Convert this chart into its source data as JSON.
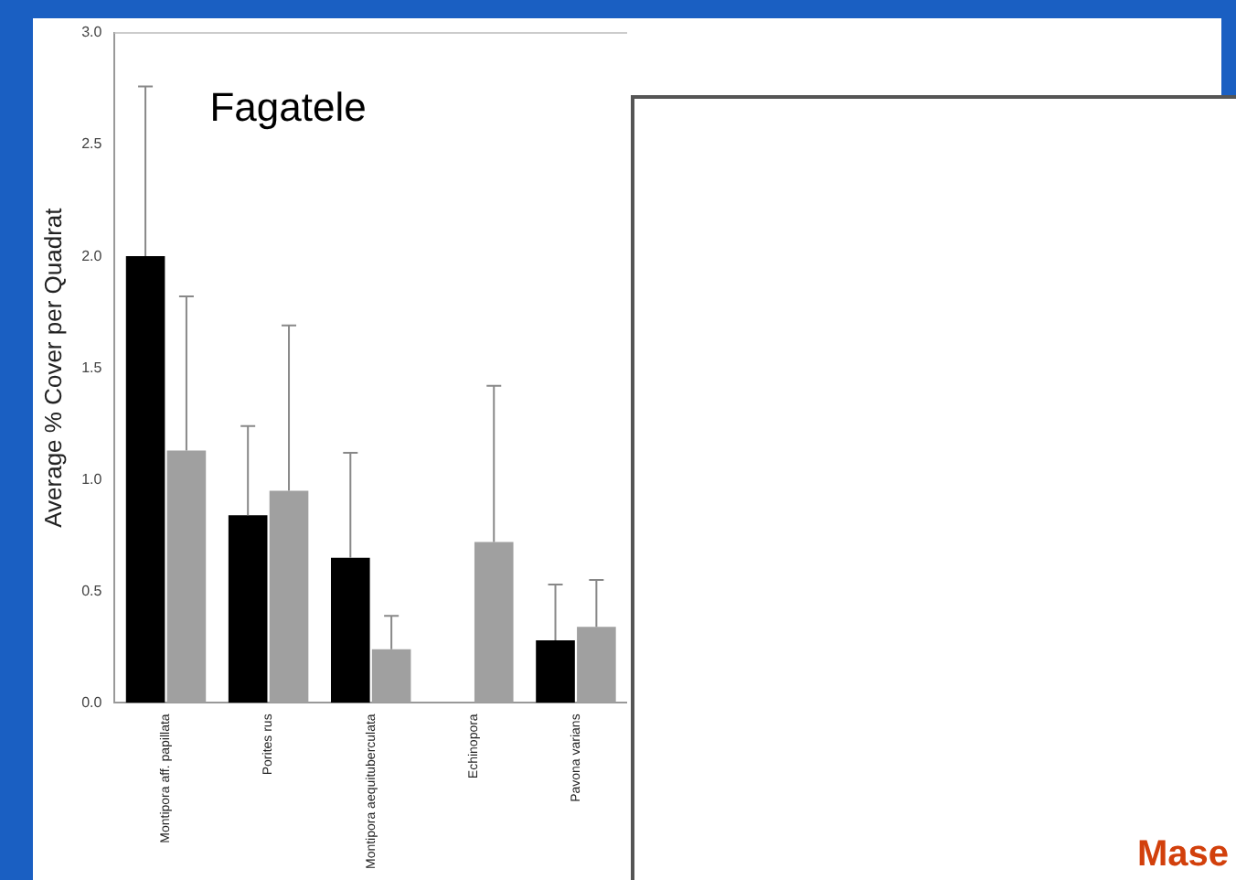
{
  "chart_data": {
    "type": "bar",
    "title": "Fagatele",
    "ylabel": "Average % Cover per Quadrat",
    "categories": [
      "Montipora aff. papillata",
      "Porites rus",
      "Montipora aequituberculata",
      "Echinopora",
      "Pavona varians"
    ],
    "series": [
      {
        "color": "#000000",
        "values": [
          2.0,
          0.84,
          0.65,
          0,
          0.28
        ],
        "errors": [
          [
            2.0,
            2.76
          ],
          [
            0.84,
            1.24
          ],
          [
            0.65,
            1.12
          ],
          null,
          [
            0.28,
            0.53
          ]
        ]
      },
      {
        "color": "#a0a0a0",
        "values": [
          1.13,
          0.95,
          0.24,
          0.72,
          0.34
        ],
        "errors": [
          [
            1.13,
            1.82
          ],
          [
            0.95,
            1.69
          ],
          [
            0.24,
            0.39
          ],
          [
            0.72,
            1.42
          ],
          [
            0.34,
            0.55
          ]
        ]
      }
    ],
    "ylim": [
      0,
      3.0
    ],
    "yticks": [
      {
        "value": 0,
        "label": "0.0"
      },
      {
        "value": 0.5,
        "label": "0.5"
      },
      {
        "value": 1,
        "label": "1.0"
      },
      {
        "value": 1.5,
        "label": "1.5"
      },
      {
        "value": 2,
        "label": "2.0"
      },
      {
        "value": 2.5,
        "label": "2.5"
      },
      {
        "value": 3,
        "label": "3.0"
      }
    ],
    "grid": false,
    "legend": false,
    "annotations": [
      "Mase"
    ]
  }
}
